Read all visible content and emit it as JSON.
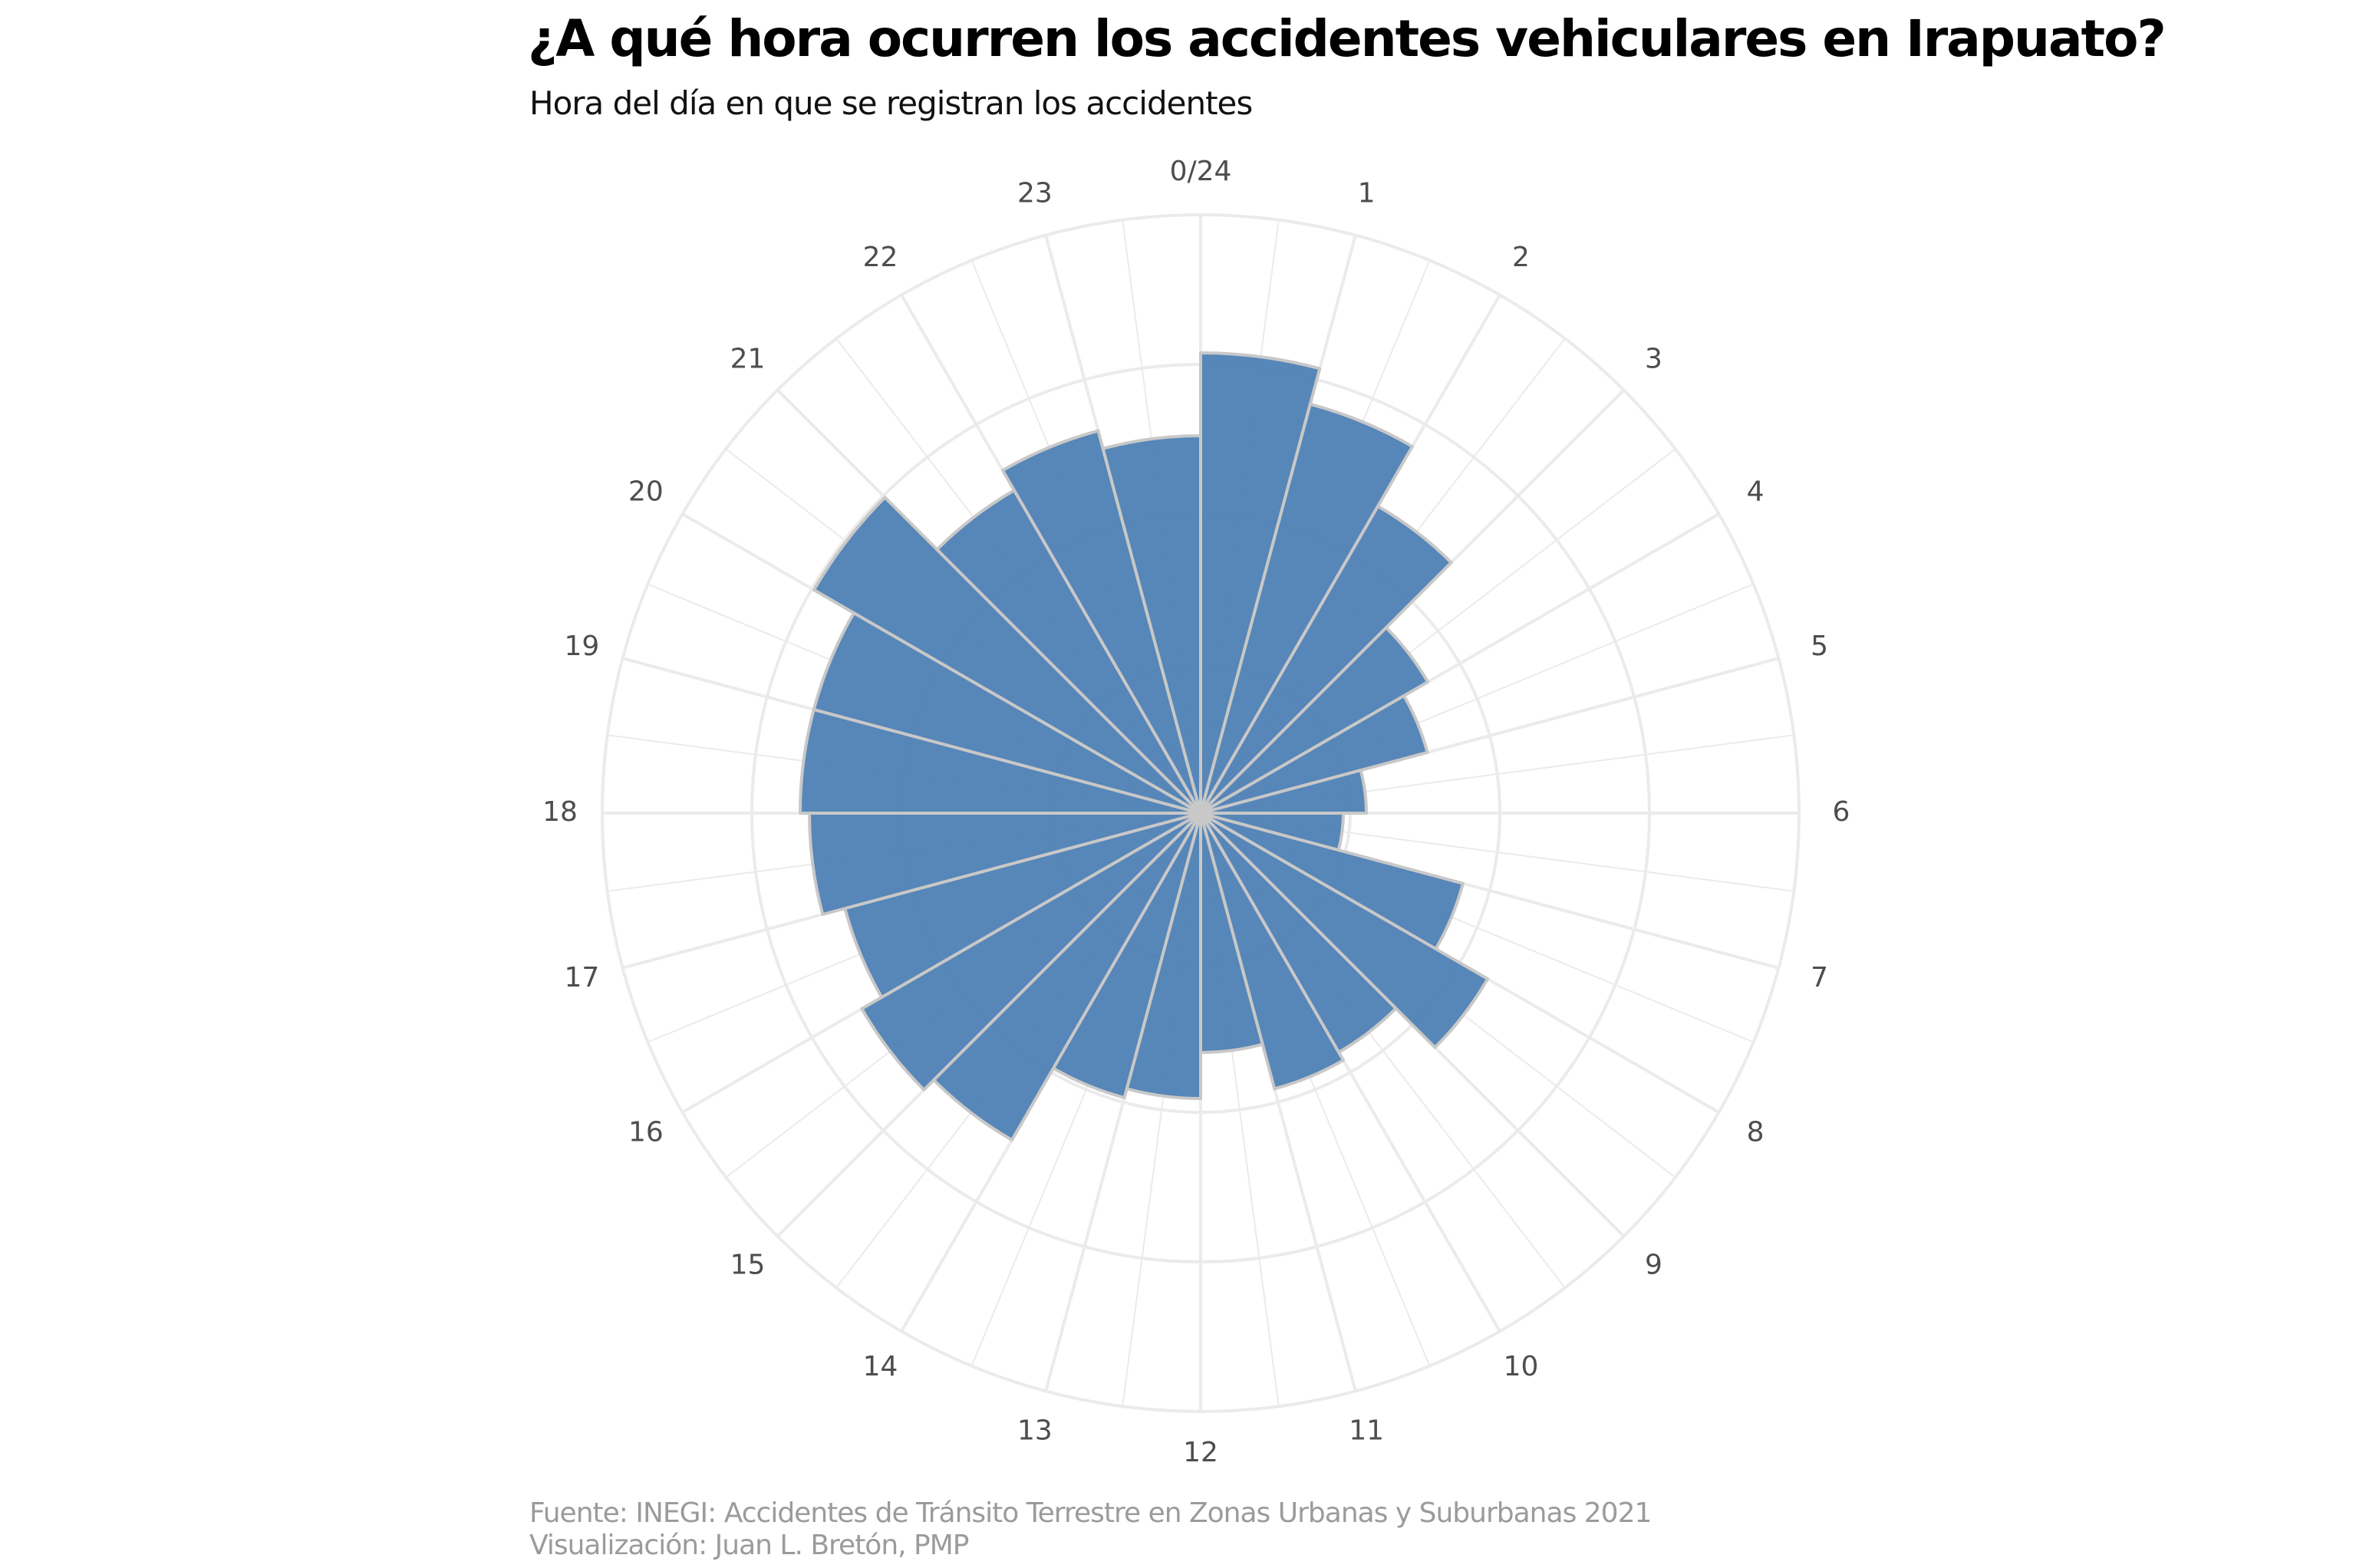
{
  "title": "¿A qué hora ocurren los accidentes vehiculares en Irapuato?",
  "subtitle": "Hora del día en que se registran los accidentes",
  "caption": {
    "source": "Fuente: INEGI: Accidentes de Tránsito Terrestre en Zonas Urbanas y Suburbanas 2021",
    "visualization": "Visualización: Juan L. Bretón, PMP"
  },
  "colors": {
    "bar_fill": "#4a7db3",
    "bar_stroke": "#c8c8c8",
    "grid": "#ebebeb",
    "label": "#4d4d4d"
  },
  "chart_data": {
    "type": "bar",
    "coordinate_system": "polar",
    "categories": [
      "0/24",
      "1",
      "2",
      "3",
      "4",
      "5",
      "6",
      "7",
      "8",
      "9",
      "10",
      "11",
      "12",
      "13",
      "14",
      "15",
      "16",
      "17",
      "18",
      "19",
      "20",
      "21",
      "22",
      "23"
    ],
    "values": [
      100,
      92,
      77,
      57,
      51,
      36,
      31,
      59,
      72,
      60,
      62,
      52,
      62,
      64,
      82,
      85,
      80,
      85,
      87,
      87,
      97,
      81,
      86,
      82
    ],
    "r_max": 130,
    "grid_rings": [
      32.5,
      65,
      97.5,
      130
    ],
    "grid": true,
    "legend": "none"
  }
}
